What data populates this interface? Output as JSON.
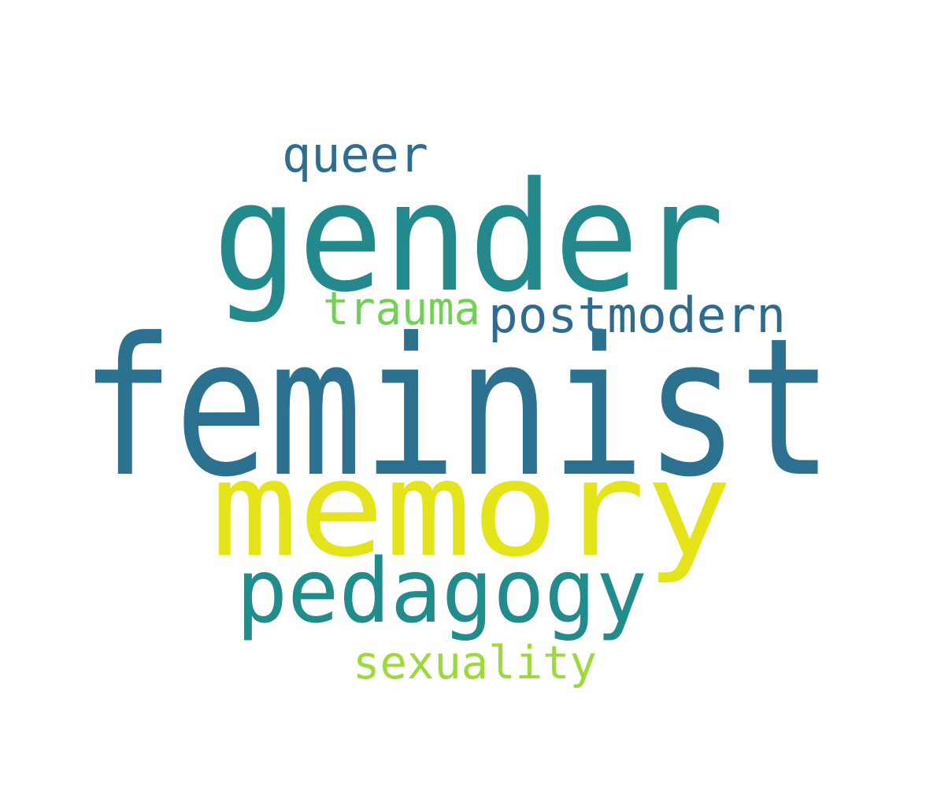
{
  "words": [
    {
      "text": "feminist",
      "color": "#2d7190"
    },
    {
      "text": "gender",
      "color": "#24898d"
    },
    {
      "text": "memory",
      "color": "#e5e41a"
    },
    {
      "text": "pedagogy",
      "color": "#228b8b"
    },
    {
      "text": "postmodern",
      "color": "#2e6b8e"
    },
    {
      "text": "trauma",
      "color": "#73cf56"
    },
    {
      "text": "queer",
      "color": "#2f6d8e"
    },
    {
      "text": "sexuality",
      "color": "#9dd93b"
    }
  ]
}
